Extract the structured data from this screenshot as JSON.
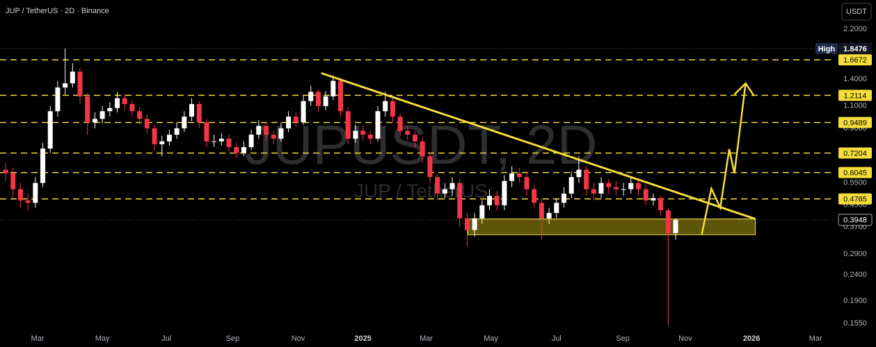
{
  "chart_data": {
    "type": "candlestick",
    "title": "JUP / TetherUS · 2D · Binance",
    "watermark": "JUPUSDT, 2D",
    "watermark_subtitle": "JUP / TetherUS",
    "currency": "USDT",
    "high_label": "High",
    "high": 1.8476,
    "last": 0.3948,
    "levels": [
      1.6672,
      1.2114,
      0.9489,
      0.7204,
      0.6045,
      0.4765
    ],
    "log_y": true,
    "up_color": "#ffffff",
    "down_color": "#f23645",
    "drawing_color": "#f5de3b",
    "xlim": [
      -0.75,
      111.4
    ],
    "xticks": [
      {
        "value": 4.3,
        "label": "Mar"
      },
      {
        "value": 13.0,
        "label": "May"
      },
      {
        "value": 21.6,
        "label": "Jul"
      },
      {
        "value": 30.5,
        "label": "Sep"
      },
      {
        "value": 39.3,
        "label": "Nov"
      },
      {
        "value": 48.0,
        "label": "2025"
      },
      {
        "value": 56.5,
        "label": "Mar"
      },
      {
        "value": 65.2,
        "label": "May"
      },
      {
        "value": 74.0,
        "label": "Jul"
      },
      {
        "value": 82.9,
        "label": "Sep"
      },
      {
        "value": 91.3,
        "label": "Nov"
      },
      {
        "value": 100.2,
        "label": "2026"
      },
      {
        "value": 108.8,
        "label": "Mar"
      }
    ],
    "ylim": [
      0.144,
      2.86
    ],
    "yticks": [
      {
        "value": 2.2,
        "label": "2.2000"
      },
      {
        "value": 1.4,
        "label": "1.4000"
      },
      {
        "value": 1.1,
        "label": "1.1000"
      },
      {
        "value": 0.9,
        "label": "0.9000"
      },
      {
        "value": 0.7,
        "label": "0.7000"
      },
      {
        "value": 0.55,
        "label": "0.5500"
      },
      {
        "value": 0.45,
        "label": "0.4500"
      },
      {
        "value": 0.37,
        "label": "0.3700"
      },
      {
        "value": 0.29,
        "label": "0.2900"
      },
      {
        "value": 0.24,
        "label": "0.2400"
      },
      {
        "value": 0.19,
        "label": "0.1900"
      },
      {
        "value": 0.155,
        "label": "0.1550"
      }
    ],
    "candles": [
      [
        0.62,
        0.66,
        0.56,
        0.6
      ],
      [
        0.6,
        0.63,
        0.48,
        0.52
      ],
      [
        0.52,
        0.55,
        0.44,
        0.47
      ],
      [
        0.47,
        0.5,
        0.43,
        0.46
      ],
      [
        0.46,
        0.58,
        0.44,
        0.55
      ],
      [
        0.55,
        0.79,
        0.53,
        0.75
      ],
      [
        0.75,
        1.1,
        0.72,
        1.05
      ],
      [
        1.05,
        1.38,
        1.0,
        1.3
      ],
      [
        1.3,
        1.8476,
        1.22,
        1.35
      ],
      [
        1.35,
        1.62,
        1.3,
        1.5
      ],
      [
        1.5,
        1.55,
        1.12,
        1.2
      ],
      [
        1.2,
        1.24,
        0.85,
        0.95
      ],
      [
        0.95,
        1.04,
        0.9,
        0.98
      ],
      [
        0.98,
        1.1,
        0.94,
        1.05
      ],
      [
        1.05,
        1.14,
        1.0,
        1.08
      ],
      [
        1.08,
        1.25,
        1.04,
        1.18
      ],
      [
        1.18,
        1.22,
        1.06,
        1.12
      ],
      [
        1.12,
        1.16,
        1.0,
        1.05
      ],
      [
        1.05,
        1.09,
        0.93,
        0.98
      ],
      [
        0.98,
        1.02,
        0.86,
        0.9
      ],
      [
        0.9,
        0.93,
        0.74,
        0.78
      ],
      [
        0.78,
        0.84,
        0.7,
        0.8
      ],
      [
        0.8,
        0.89,
        0.77,
        0.85
      ],
      [
        0.85,
        0.95,
        0.82,
        0.9
      ],
      [
        0.9,
        1.05,
        0.87,
        1.0
      ],
      [
        1.0,
        1.18,
        0.96,
        1.12
      ],
      [
        1.12,
        1.15,
        0.9,
        0.95
      ],
      [
        0.95,
        0.98,
        0.76,
        0.8
      ],
      [
        0.8,
        0.85,
        0.76,
        0.8
      ],
      [
        0.8,
        0.86,
        0.77,
        0.82
      ],
      [
        0.82,
        0.85,
        0.73,
        0.76
      ],
      [
        0.76,
        0.79,
        0.69,
        0.72
      ],
      [
        0.72,
        0.8,
        0.7,
        0.76
      ],
      [
        0.76,
        0.89,
        0.74,
        0.85
      ],
      [
        0.85,
        0.97,
        0.82,
        0.92
      ],
      [
        0.92,
        0.95,
        0.81,
        0.85
      ],
      [
        0.85,
        0.88,
        0.78,
        0.82
      ],
      [
        0.82,
        0.95,
        0.8,
        0.9
      ],
      [
        0.9,
        1.05,
        0.87,
        1.0
      ],
      [
        1.0,
        1.04,
        0.91,
        0.95
      ],
      [
        0.95,
        1.21,
        0.93,
        1.15
      ],
      [
        1.15,
        1.32,
        1.1,
        1.25
      ],
      [
        1.25,
        1.28,
        1.05,
        1.1
      ],
      [
        1.1,
        1.26,
        1.06,
        1.2
      ],
      [
        1.2,
        1.45,
        1.16,
        1.38
      ],
      [
        1.38,
        1.42,
        1.0,
        1.05
      ],
      [
        1.05,
        1.08,
        0.78,
        0.82
      ],
      [
        0.82,
        0.93,
        0.79,
        0.88
      ],
      [
        0.88,
        0.92,
        0.81,
        0.85
      ],
      [
        0.85,
        0.88,
        0.78,
        0.82
      ],
      [
        0.82,
        1.1,
        0.8,
        1.05
      ],
      [
        1.05,
        1.25,
        1.0,
        1.15
      ],
      [
        1.15,
        1.18,
        0.95,
        1.0
      ],
      [
        1.0,
        1.03,
        0.84,
        0.88
      ],
      [
        0.88,
        0.92,
        0.81,
        0.85
      ],
      [
        0.85,
        0.88,
        0.76,
        0.8
      ],
      [
        0.8,
        0.83,
        0.66,
        0.7
      ],
      [
        0.7,
        0.72,
        0.55,
        0.58
      ],
      [
        0.58,
        0.6,
        0.47,
        0.5
      ],
      [
        0.5,
        0.55,
        0.48,
        0.52
      ],
      [
        0.52,
        0.58,
        0.49,
        0.55
      ],
      [
        0.55,
        0.57,
        0.37,
        0.4
      ],
      [
        0.4,
        0.42,
        0.31,
        0.36
      ],
      [
        0.36,
        0.42,
        0.34,
        0.4
      ],
      [
        0.4,
        0.47,
        0.38,
        0.45
      ],
      [
        0.45,
        0.52,
        0.43,
        0.49
      ],
      [
        0.49,
        0.51,
        0.43,
        0.45
      ],
      [
        0.45,
        0.59,
        0.43,
        0.56
      ],
      [
        0.56,
        0.64,
        0.53,
        0.6
      ],
      [
        0.6,
        0.63,
        0.55,
        0.58
      ],
      [
        0.58,
        0.6,
        0.49,
        0.52
      ],
      [
        0.52,
        0.54,
        0.44,
        0.46
      ],
      [
        0.46,
        0.48,
        0.33,
        0.4
      ],
      [
        0.4,
        0.44,
        0.38,
        0.42
      ],
      [
        0.42,
        0.48,
        0.4,
        0.46
      ],
      [
        0.46,
        0.53,
        0.44,
        0.5
      ],
      [
        0.5,
        0.61,
        0.48,
        0.58
      ],
      [
        0.58,
        0.7,
        0.55,
        0.62
      ],
      [
        0.62,
        0.64,
        0.49,
        0.52
      ],
      [
        0.52,
        0.55,
        0.47,
        0.5
      ],
      [
        0.5,
        0.58,
        0.48,
        0.55
      ],
      [
        0.55,
        0.57,
        0.5,
        0.53
      ],
      [
        0.53,
        0.56,
        0.49,
        0.52
      ],
      [
        0.52,
        0.55,
        0.49,
        0.52
      ],
      [
        0.52,
        0.58,
        0.5,
        0.55
      ],
      [
        0.55,
        0.57,
        0.49,
        0.52
      ],
      [
        0.52,
        0.54,
        0.45,
        0.47
      ],
      [
        0.47,
        0.5,
        0.45,
        0.48
      ],
      [
        0.48,
        0.49,
        0.41,
        0.43
      ],
      [
        0.43,
        0.44,
        0.152,
        0.35
      ],
      [
        0.35,
        0.4,
        0.33,
        0.3948
      ]
    ],
    "trendline": {
      "x": [
        42.4,
        100.7
      ],
      "y": [
        1.48,
        0.398
      ]
    },
    "zone": {
      "x": [
        62.1,
        100.7
      ],
      "y": [
        0.345,
        0.398
      ]
    },
    "arrow": {
      "x": [
        93.5,
        94.8,
        96.0,
        97.2,
        97.9,
        99.4
      ],
      "y": [
        0.345,
        0.523,
        0.44,
        0.746,
        0.6,
        1.35
      ]
    }
  }
}
